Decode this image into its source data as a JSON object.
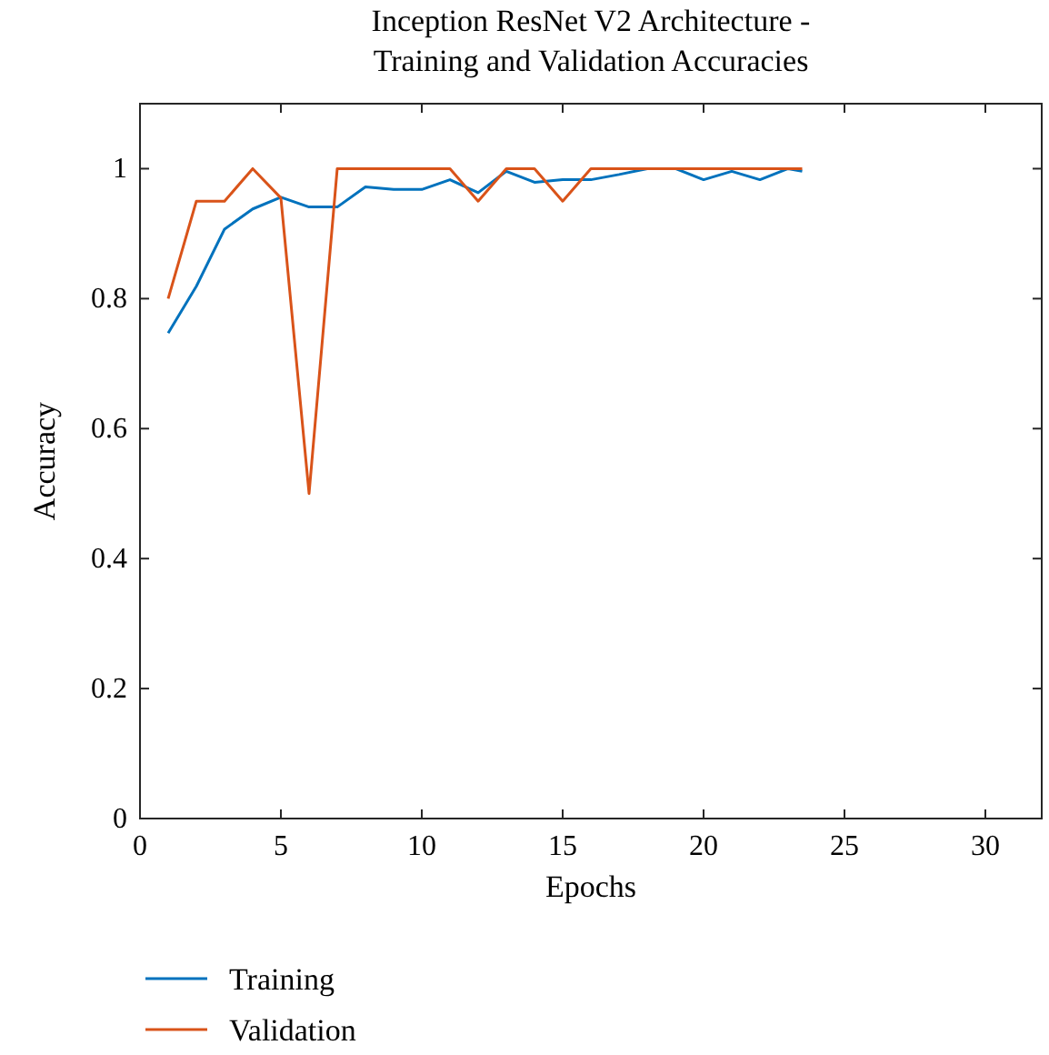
{
  "chart_data": {
    "type": "line",
    "title": "Inception ResNet V2 Architecture -\nTraining and Validation Accuracies",
    "xlabel": "Epochs",
    "ylabel": "Accuracy",
    "x": [
      1,
      2,
      3,
      4,
      5,
      6,
      7,
      8,
      9,
      10,
      11,
      12,
      13,
      14,
      15,
      16,
      17,
      18,
      19,
      20,
      21,
      22,
      23,
      23.5
    ],
    "series": [
      {
        "name": "Training",
        "color": "#0072bd",
        "values": [
          0.747,
          0.819,
          0.907,
          0.938,
          0.956,
          0.941,
          0.941,
          0.972,
          0.968,
          0.968,
          0.983,
          0.963,
          0.996,
          0.979,
          0.983,
          0.983,
          0.991,
          1,
          1,
          0.983,
          0.996,
          0.983,
          1,
          0.996
        ]
      },
      {
        "name": "Validation",
        "color": "#d95319",
        "values": [
          0.8,
          0.95,
          0.95,
          1,
          0.955,
          0.5,
          1,
          1,
          1,
          1,
          1,
          0.95,
          1,
          1,
          0.95,
          1,
          1,
          1,
          1,
          1,
          1,
          1,
          1,
          1
        ]
      }
    ],
    "xlim": [
      0,
      32
    ],
    "ylim": [
      0,
      1.1
    ],
    "xticks": [
      0,
      5,
      10,
      15,
      20,
      25,
      30
    ],
    "yticks": [
      0,
      0.2,
      0.4,
      0.6,
      0.8,
      1
    ],
    "grid": false,
    "legend": "bottom left",
    "marker": "none",
    "line_style": "solid"
  }
}
